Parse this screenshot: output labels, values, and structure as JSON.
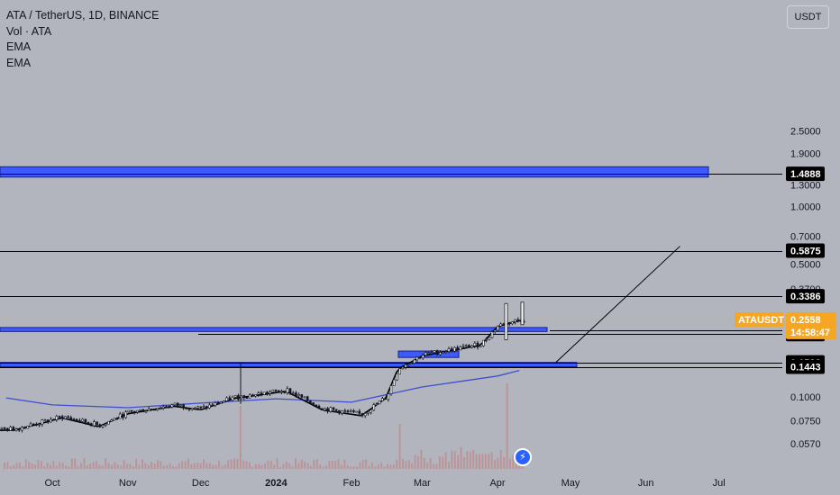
{
  "legend": {
    "title": "ATA / TetherUS, 1D, BINANCE",
    "vol": "Vol · ATA",
    "ema1": "EMA",
    "ema2": "EMA"
  },
  "currency_button": "USDT",
  "colors": {
    "background": "#b2b5be",
    "zone": "#3d5afe",
    "candle": "#131722",
    "ema": "#3d4fcf",
    "price_tag": "#f5a623",
    "level_tag": "#000000",
    "volume": "#c07878"
  },
  "chart_data": {
    "type": "candlestick",
    "symbol": "ATAUSDT",
    "title": "ATA / TetherUS, 1D, BINANCE",
    "y_scale": "log",
    "y_ticks": [
      "2.5000",
      "1.9000",
      "1.3000",
      "1.0000",
      "0.7000",
      "0.5000",
      "0.3700",
      "0.1000",
      "0.0750",
      "0.0570"
    ],
    "x_ticks": [
      "Oct",
      "Nov",
      "Dec",
      "2024",
      "Feb",
      "Mar",
      "Apr",
      "May",
      "Jun",
      "Jul"
    ],
    "current_price": {
      "label": "ATAUSDT",
      "value": "0.2558",
      "countdown": "14:58:47"
    },
    "levels": [
      "1.4888",
      "0.5875",
      "0.3386",
      "0.2240",
      "0.2142",
      "0.1522",
      "0.1443"
    ],
    "zones": [
      {
        "low": 1.43,
        "high": 1.62
      },
      {
        "low": 0.221,
        "high": 0.232
      },
      {
        "low": 0.1443,
        "high": 0.1522
      },
      {
        "low": 0.1615,
        "high": 0.1745
      }
    ],
    "price_path": [
      [
        "2023-09-15",
        0.068
      ],
      [
        "2023-09-25",
        0.073
      ],
      [
        "2023-10-05",
        0.079
      ],
      [
        "2023-10-20",
        0.071
      ],
      [
        "2023-11-01",
        0.083
      ],
      [
        "2023-11-20",
        0.091
      ],
      [
        "2023-12-01",
        0.087
      ],
      [
        "2023-12-15",
        0.1
      ],
      [
        "2023-12-25",
        0.104
      ],
      [
        "2024-01-05",
        0.109
      ],
      [
        "2024-01-20",
        0.087
      ],
      [
        "2024-02-05",
        0.081
      ],
      [
        "2024-02-15",
        0.1
      ],
      [
        "2024-02-20",
        0.142
      ],
      [
        "2024-03-01",
        0.167
      ],
      [
        "2024-03-15",
        0.18
      ],
      [
        "2024-03-25",
        0.19
      ],
      [
        "2024-04-01",
        0.238
      ],
      [
        "2024-04-10",
        0.2558
      ]
    ],
    "ema_path": [
      [
        "2023-09-12",
        0.099
      ],
      [
        "2023-10-01",
        0.091
      ],
      [
        "2023-11-01",
        0.088
      ],
      [
        "2023-12-01",
        0.093
      ],
      [
        "2024-01-01",
        0.098
      ],
      [
        "2024-02-01",
        0.094
      ],
      [
        "2024-03-01",
        0.113
      ],
      [
        "2024-04-01",
        0.129
      ],
      [
        "2024-04-10",
        0.138
      ]
    ],
    "projection": [
      [
        "2024-04-25",
        0.1522
      ],
      [
        "2024-06-15",
        0.62
      ]
    ]
  }
}
